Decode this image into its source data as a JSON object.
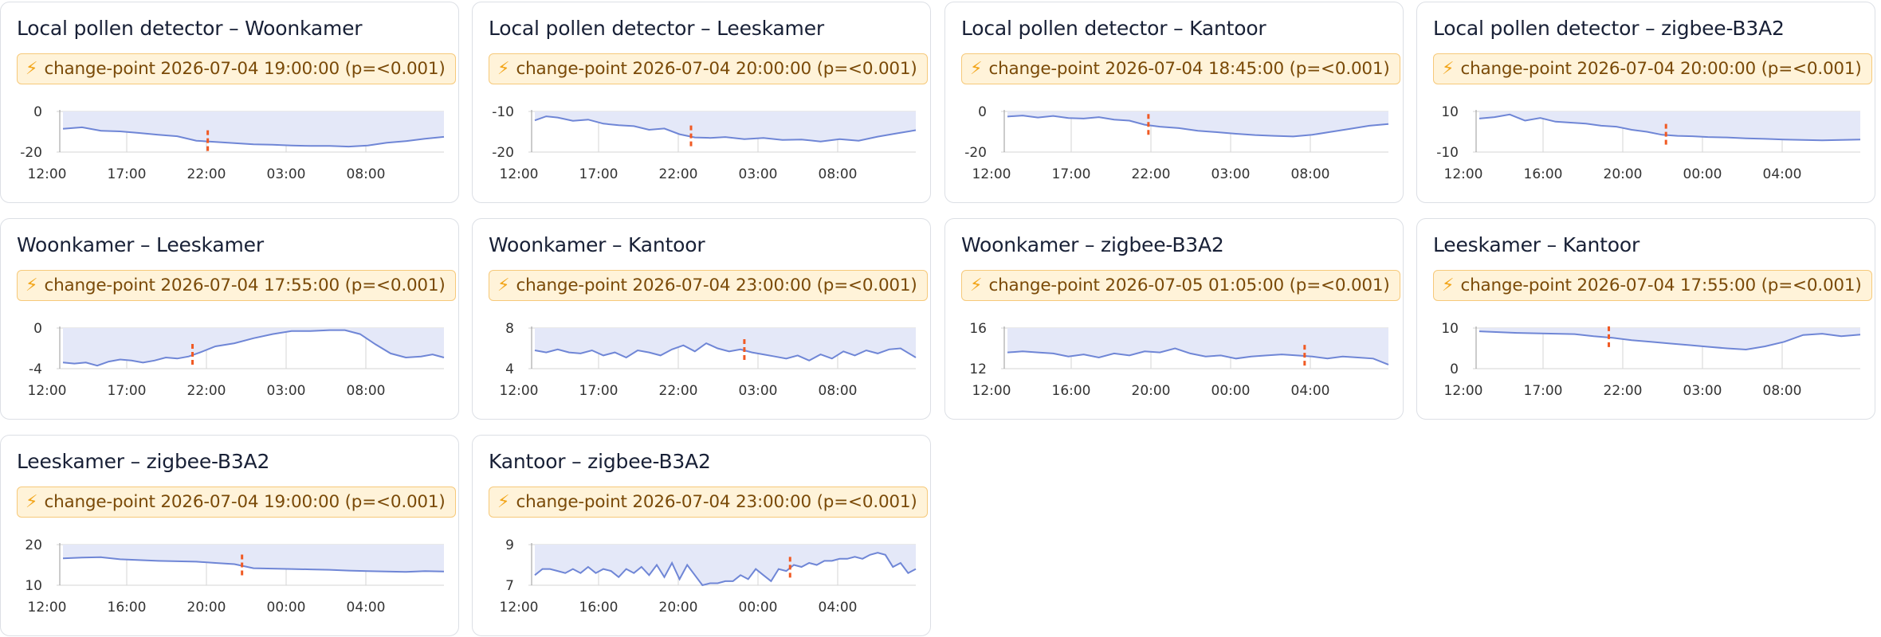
{
  "colors": {
    "line": "#6f86d6",
    "area": "#e4e8f8",
    "grid": "#d6d6d6",
    "changepoint": "#f05a24",
    "badge_bg": "#fff3d9",
    "badge_border": "#f6c97a",
    "badge_text": "#7a4a08",
    "badge_icon": "#f2a51a"
  },
  "badge_icon": "lightning-icon",
  "chart_data": [
    {
      "type": "area",
      "title": "Local pollen detector – Woonkamer",
      "badge": "change-point 2026-07-04 19:00:00 (p=<0.001)",
      "x_ticks": [
        "12:00",
        "17:00",
        "22:00",
        "03:00",
        "08:00"
      ],
      "y_ticks": [
        "0",
        "-20"
      ],
      "ylim": [
        -20,
        0
      ],
      "changepoint_x": 0.38,
      "x": [
        0,
        0.05,
        0.1,
        0.15,
        0.2,
        0.25,
        0.3,
        0.35,
        0.4,
        0.45,
        0.5,
        0.55,
        0.6,
        0.65,
        0.7,
        0.75,
        0.8,
        0.85,
        0.9,
        0.95,
        1
      ],
      "y": [
        -8.5,
        -7.8,
        -9.5,
        -9.8,
        -10.6,
        -11.5,
        -12.2,
        -14.4,
        -15.0,
        -15.6,
        -16.2,
        -16.4,
        -16.8,
        -17.0,
        -17.0,
        -17.3,
        -16.8,
        -15.4,
        -14.6,
        -13.4,
        -12.5
      ]
    },
    {
      "type": "area",
      "title": "Local pollen detector – Leeskamer",
      "badge": "change-point 2026-07-04 20:00:00 (p=<0.001)",
      "x_ticks": [
        "12:00",
        "17:00",
        "22:00",
        "03:00",
        "08:00"
      ],
      "y_ticks": [
        "-10",
        "-20"
      ],
      "ylim": [
        -20,
        -10
      ],
      "changepoint_x": 0.41,
      "x": [
        0,
        0.03,
        0.06,
        0.1,
        0.14,
        0.18,
        0.22,
        0.26,
        0.3,
        0.34,
        0.38,
        0.42,
        0.46,
        0.5,
        0.55,
        0.6,
        0.65,
        0.7,
        0.75,
        0.8,
        0.85,
        0.9,
        0.95,
        1
      ],
      "y": [
        -12.2,
        -11.2,
        -11.5,
        -12.3,
        -12.0,
        -13.0,
        -13.4,
        -13.6,
        -14.5,
        -14.2,
        -15.6,
        -16.4,
        -16.5,
        -16.3,
        -16.8,
        -16.5,
        -17.0,
        -16.9,
        -17.4,
        -16.8,
        -17.2,
        -16.2,
        -15.4,
        -14.6
      ]
    },
    {
      "type": "area",
      "title": "Local pollen detector – Kantoor",
      "badge": "change-point 2026-07-04 18:45:00 (p=<0.001)",
      "x_ticks": [
        "12:00",
        "17:00",
        "22:00",
        "03:00",
        "08:00"
      ],
      "y_ticks": [
        "0",
        "-20"
      ],
      "ylim": [
        -20,
        0
      ],
      "changepoint_x": 0.37,
      "x": [
        0,
        0.04,
        0.08,
        0.12,
        0.16,
        0.2,
        0.24,
        0.28,
        0.32,
        0.36,
        0.4,
        0.45,
        0.5,
        0.55,
        0.6,
        0.65,
        0.7,
        0.75,
        0.8,
        0.85,
        0.9,
        0.95,
        1
      ],
      "y": [
        -2.5,
        -2.0,
        -3.0,
        -2.2,
        -3.2,
        -3.5,
        -2.8,
        -4.0,
        -4.5,
        -6.5,
        -7.5,
        -8.2,
        -9.5,
        -10.2,
        -11.0,
        -11.6,
        -12.0,
        -12.3,
        -11.5,
        -10.0,
        -8.5,
        -7.0,
        -6.2
      ]
    },
    {
      "type": "area",
      "title": "Local pollen detector – zigbee-B3A2",
      "badge": "change-point 2026-07-04 20:00:00 (p=<0.001)",
      "x_ticks": [
        "12:00",
        "16:00",
        "20:00",
        "00:00",
        "04:00"
      ],
      "y_ticks": [
        "10",
        "-10"
      ],
      "ylim": [
        -10,
        10
      ],
      "changepoint_x": 0.49,
      "x": [
        0,
        0.04,
        0.08,
        0.12,
        0.16,
        0.2,
        0.24,
        0.28,
        0.32,
        0.36,
        0.4,
        0.44,
        0.48,
        0.52,
        0.56,
        0.6,
        0.65,
        0.7,
        0.75,
        0.8,
        0.85,
        0.9,
        0.95,
        1
      ],
      "y": [
        6.5,
        7.2,
        8.5,
        5.5,
        6.8,
        5.0,
        4.5,
        4.0,
        3.0,
        2.5,
        1.0,
        0.0,
        -1.5,
        -2.0,
        -2.2,
        -2.6,
        -2.8,
        -3.2,
        -3.5,
        -3.8,
        -4.0,
        -4.2,
        -4.0,
        -3.8
      ]
    },
    {
      "type": "area",
      "title": "Woonkamer – Leeskamer",
      "badge": "change-point 2026-07-04 17:55:00 (p=<0.001)",
      "x_ticks": [
        "12:00",
        "17:00",
        "22:00",
        "03:00",
        "08:00"
      ],
      "y_ticks": [
        "0",
        "-4"
      ],
      "ylim": [
        -4,
        0
      ],
      "changepoint_x": 0.34,
      "x": [
        0,
        0.03,
        0.06,
        0.09,
        0.12,
        0.15,
        0.18,
        0.21,
        0.24,
        0.27,
        0.3,
        0.33,
        0.36,
        0.4,
        0.45,
        0.5,
        0.55,
        0.6,
        0.65,
        0.7,
        0.74,
        0.78,
        0.82,
        0.86,
        0.9,
        0.94,
        0.97,
        1
      ],
      "y": [
        -3.4,
        -3.5,
        -3.4,
        -3.7,
        -3.3,
        -3.1,
        -3.2,
        -3.4,
        -3.2,
        -2.9,
        -3.0,
        -2.8,
        -2.4,
        -1.8,
        -1.5,
        -1.0,
        -0.6,
        -0.3,
        -0.3,
        -0.2,
        -0.2,
        -0.6,
        -1.6,
        -2.5,
        -2.9,
        -2.8,
        -2.6,
        -2.9
      ]
    },
    {
      "type": "area",
      "title": "Woonkamer – Kantoor",
      "badge": "change-point 2026-07-04 23:00:00 (p=<0.001)",
      "x_ticks": [
        "12:00",
        "17:00",
        "22:00",
        "03:00",
        "08:00"
      ],
      "y_ticks": [
        "8",
        "4"
      ],
      "ylim": [
        4,
        8
      ],
      "changepoint_x": 0.55,
      "x": [
        0,
        0.03,
        0.06,
        0.09,
        0.12,
        0.15,
        0.18,
        0.21,
        0.24,
        0.27,
        0.3,
        0.33,
        0.36,
        0.39,
        0.42,
        0.45,
        0.48,
        0.51,
        0.54,
        0.57,
        0.6,
        0.63,
        0.66,
        0.69,
        0.72,
        0.75,
        0.78,
        0.81,
        0.84,
        0.87,
        0.9,
        0.93,
        0.96,
        1
      ],
      "y": [
        5.8,
        5.6,
        5.9,
        5.6,
        5.5,
        5.8,
        5.3,
        5.6,
        5.1,
        5.8,
        5.6,
        5.3,
        5.9,
        6.3,
        5.7,
        6.5,
        6.0,
        5.7,
        5.9,
        5.6,
        5.4,
        5.2,
        5.0,
        5.3,
        4.8,
        5.4,
        5.0,
        5.7,
        5.3,
        5.8,
        5.5,
        5.9,
        6.0,
        5.1
      ]
    },
    {
      "type": "area",
      "title": "Woonkamer – zigbee-B3A2",
      "badge": "change-point 2026-07-05 01:05:00 (p=<0.001)",
      "x_ticks": [
        "12:00",
        "16:00",
        "20:00",
        "00:00",
        "04:00"
      ],
      "y_ticks": [
        "16",
        "12"
      ],
      "ylim": [
        12,
        16
      ],
      "changepoint_x": 0.78,
      "x": [
        0,
        0.04,
        0.08,
        0.12,
        0.16,
        0.2,
        0.24,
        0.28,
        0.32,
        0.36,
        0.4,
        0.44,
        0.48,
        0.52,
        0.56,
        0.6,
        0.64,
        0.68,
        0.72,
        0.76,
        0.8,
        0.84,
        0.88,
        0.92,
        0.96,
        1
      ],
      "y": [
        13.6,
        13.7,
        13.6,
        13.5,
        13.2,
        13.4,
        13.1,
        13.5,
        13.3,
        13.7,
        13.6,
        14.0,
        13.5,
        13.2,
        13.3,
        13.0,
        13.2,
        13.3,
        13.4,
        13.3,
        13.2,
        13.0,
        13.2,
        13.1,
        13.0,
        12.4
      ]
    },
    {
      "type": "area",
      "title": "Leeskamer – Kantoor",
      "badge": "change-point 2026-07-04 17:55:00 (p=<0.001)",
      "x_ticks": [
        "12:00",
        "17:00",
        "22:00",
        "03:00",
        "08:00"
      ],
      "y_ticks": [
        "10",
        "0"
      ],
      "ylim": [
        0,
        10
      ],
      "changepoint_x": 0.34,
      "x": [
        0,
        0.05,
        0.1,
        0.15,
        0.2,
        0.25,
        0.3,
        0.35,
        0.4,
        0.45,
        0.5,
        0.55,
        0.6,
        0.65,
        0.7,
        0.75,
        0.8,
        0.85,
        0.9,
        0.95,
        1
      ],
      "y": [
        9.2,
        9.0,
        8.8,
        8.7,
        8.6,
        8.5,
        8.0,
        7.6,
        7.0,
        6.6,
        6.2,
        5.8,
        5.4,
        5.0,
        4.7,
        5.5,
        6.6,
        8.3,
        8.6,
        8.0,
        8.4
      ]
    },
    {
      "type": "area",
      "title": "Leeskamer – zigbee-B3A2",
      "badge": "change-point 2026-07-04 19:00:00 (p=<0.001)",
      "x_ticks": [
        "12:00",
        "16:00",
        "20:00",
        "00:00",
        "04:00"
      ],
      "y_ticks": [
        "20",
        "10"
      ],
      "ylim": [
        10,
        20
      ],
      "changepoint_x": 0.47,
      "x": [
        0,
        0.05,
        0.1,
        0.15,
        0.2,
        0.25,
        0.3,
        0.35,
        0.4,
        0.45,
        0.5,
        0.55,
        0.6,
        0.65,
        0.7,
        0.75,
        0.8,
        0.85,
        0.9,
        0.95,
        1
      ],
      "y": [
        16.6,
        16.8,
        16.9,
        16.4,
        16.2,
        16.0,
        15.9,
        15.8,
        15.5,
        15.2,
        14.2,
        14.1,
        14.0,
        13.9,
        13.8,
        13.6,
        13.5,
        13.4,
        13.3,
        13.5,
        13.4
      ]
    },
    {
      "type": "area",
      "title": "Kantoor – zigbee-B3A2",
      "badge": "change-point 2026-07-04 23:00:00 (p=<0.001)",
      "x_ticks": [
        "12:00",
        "16:00",
        "20:00",
        "00:00",
        "04:00"
      ],
      "y_ticks": [
        "9",
        "7"
      ],
      "ylim": [
        7,
        9
      ],
      "changepoint_x": 0.67,
      "x": [
        0,
        0.02,
        0.04,
        0.06,
        0.08,
        0.1,
        0.12,
        0.14,
        0.16,
        0.18,
        0.2,
        0.22,
        0.24,
        0.26,
        0.28,
        0.3,
        0.32,
        0.34,
        0.36,
        0.38,
        0.4,
        0.42,
        0.44,
        0.46,
        0.48,
        0.5,
        0.52,
        0.54,
        0.56,
        0.58,
        0.6,
        0.62,
        0.64,
        0.66,
        0.68,
        0.7,
        0.72,
        0.74,
        0.76,
        0.78,
        0.8,
        0.82,
        0.84,
        0.86,
        0.88,
        0.9,
        0.92,
        0.94,
        0.96,
        0.98,
        1
      ],
      "y": [
        7.5,
        7.8,
        7.8,
        7.7,
        7.6,
        7.8,
        7.6,
        7.9,
        7.6,
        7.8,
        7.7,
        7.4,
        7.8,
        7.6,
        7.9,
        7.5,
        8.0,
        7.4,
        8.1,
        7.3,
        8.0,
        7.5,
        7.0,
        7.1,
        7.1,
        7.2,
        7.2,
        7.5,
        7.3,
        7.8,
        7.5,
        7.2,
        7.8,
        7.7,
        8.0,
        7.9,
        8.1,
        8.0,
        8.2,
        8.2,
        8.3,
        8.3,
        8.4,
        8.3,
        8.5,
        8.6,
        8.5,
        7.9,
        8.1,
        7.6,
        7.8
      ]
    }
  ]
}
